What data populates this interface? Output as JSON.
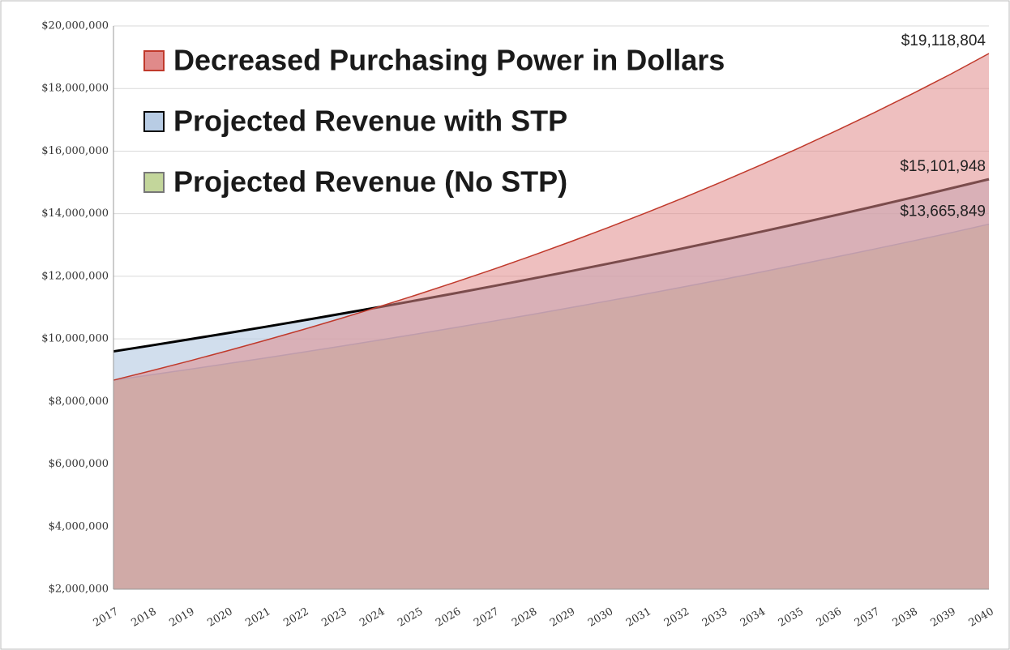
{
  "chart_data": {
    "type": "area",
    "categories": [
      "2017",
      "2018",
      "2019",
      "2020",
      "2021",
      "2022",
      "2023",
      "2024",
      "2025",
      "2026",
      "2027",
      "2028",
      "2029",
      "2030",
      "2031",
      "2032",
      "2033",
      "2034",
      "2035",
      "2036",
      "2037",
      "2038",
      "2039",
      "2040"
    ],
    "series": [
      {
        "name": "Decreased Purchasing Power in Dollars",
        "color": "#c0392b",
        "fill": "#e08a8a",
        "values": [
          8680000,
          8983000,
          9296000,
          9621000,
          9957000,
          10304000,
          10664000,
          11036000,
          11421000,
          11820000,
          12232000,
          12659000,
          13101000,
          13558000,
          14031000,
          14521000,
          15028000,
          15552000,
          16095000,
          16657000,
          17238000,
          17840000,
          18462000,
          19118804
        ],
        "value_labels": [
          null,
          null,
          null,
          null,
          null,
          null,
          null,
          null,
          null,
          null,
          null,
          null,
          null,
          null,
          null,
          null,
          null,
          null,
          null,
          null,
          null,
          null,
          null,
          "$19,118,804"
        ]
      },
      {
        "name": "Projected Revenue with STP",
        "color": "#000000",
        "fill": "#b8cce4",
        "values": [
          9600000,
          9791000,
          9986000,
          10185000,
          10387000,
          10594000,
          10805000,
          11020000,
          11239000,
          11463000,
          11691000,
          11924000,
          12161000,
          12403000,
          12650000,
          12902000,
          13158000,
          13420000,
          13687000,
          13960000,
          14237000,
          14521000,
          14810000,
          15101948
        ],
        "value_labels": [
          null,
          null,
          null,
          null,
          null,
          null,
          null,
          null,
          null,
          null,
          null,
          null,
          null,
          null,
          null,
          null,
          null,
          null,
          null,
          null,
          null,
          null,
          null,
          "$15,101,948"
        ]
      },
      {
        "name": "Projected Revenue (No STP)",
        "color": "#5a7fb5",
        "fill": "#c3d69b",
        "values": [
          8680000,
          8853000,
          9029000,
          9209000,
          9392000,
          9579000,
          9770000,
          9964000,
          10162000,
          10365000,
          10571000,
          10781000,
          10996000,
          11215000,
          11438000,
          11666000,
          11898000,
          12134000,
          12376000,
          12622000,
          12873000,
          13129000,
          13391000,
          13665849
        ],
        "value_labels": [
          null,
          null,
          null,
          null,
          null,
          null,
          null,
          null,
          null,
          null,
          null,
          null,
          null,
          null,
          null,
          null,
          null,
          null,
          null,
          null,
          null,
          null,
          null,
          "$13,665,849"
        ]
      }
    ],
    "ylim": [
      2000000,
      20000000
    ],
    "yticks": [
      {
        "value": 2000000,
        "label": "$2,000,000"
      },
      {
        "value": 4000000,
        "label": "$4,000,000"
      },
      {
        "value": 6000000,
        "label": "$6,000,000"
      },
      {
        "value": 8000000,
        "label": "$8,000,000"
      },
      {
        "value": 10000000,
        "label": "$10,000,000"
      },
      {
        "value": 12000000,
        "label": "$12,000,000"
      },
      {
        "value": 14000000,
        "label": "$14,000,000"
      },
      {
        "value": 16000000,
        "label": "$16,000,000"
      },
      {
        "value": 18000000,
        "label": "$18,000,000"
      },
      {
        "value": 20000000,
        "label": "$20,000,000"
      }
    ],
    "grid": true,
    "legend": "top-left"
  }
}
